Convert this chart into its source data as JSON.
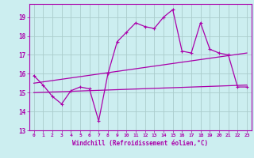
{
  "xlabel": "Windchill (Refroidissement éolien,°C)",
  "background_color": "#cceef0",
  "grid_color": "#aacccc",
  "line_color": "#aa00aa",
  "xlim": [
    -0.5,
    23.5
  ],
  "ylim": [
    13,
    19.7
  ],
  "yticks": [
    13,
    14,
    15,
    16,
    17,
    18,
    19
  ],
  "xticks": [
    0,
    1,
    2,
    3,
    4,
    5,
    6,
    7,
    8,
    9,
    10,
    11,
    12,
    13,
    14,
    15,
    16,
    17,
    18,
    19,
    20,
    21,
    22,
    23
  ],
  "series1_x": [
    0,
    1,
    2,
    3,
    4,
    5,
    6,
    7,
    8,
    9,
    10,
    11,
    12,
    13,
    14,
    15,
    16,
    17,
    18,
    19,
    20,
    21,
    22,
    23
  ],
  "series1_y": [
    15.9,
    15.4,
    14.8,
    14.4,
    15.1,
    15.3,
    15.2,
    13.5,
    16.0,
    17.7,
    18.2,
    18.7,
    18.5,
    18.4,
    19.0,
    19.4,
    17.2,
    17.1,
    18.7,
    17.3,
    17.1,
    17.0,
    15.3,
    15.3
  ],
  "series2_x": [
    0,
    23
  ],
  "series2_y": [
    15.5,
    17.1
  ],
  "series3_x": [
    0,
    23
  ],
  "series3_y": [
    15.0,
    15.4
  ]
}
